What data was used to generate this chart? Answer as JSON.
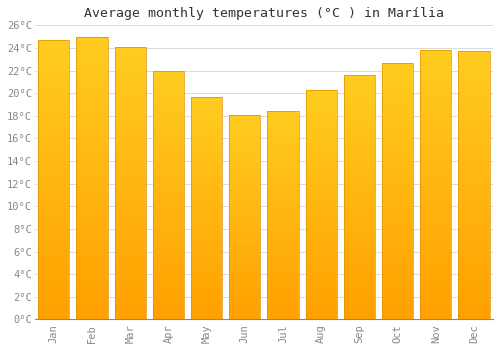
{
  "title": "Average monthly temperatures (°C ) in Marília",
  "months": [
    "Jan",
    "Feb",
    "Mar",
    "Apr",
    "May",
    "Jun",
    "Jul",
    "Aug",
    "Sep",
    "Oct",
    "Nov",
    "Dec"
  ],
  "values": [
    24.7,
    25.0,
    24.1,
    22.0,
    19.7,
    18.1,
    18.4,
    20.3,
    21.6,
    22.7,
    23.8,
    23.7
  ],
  "bar_color_top": "#FFC020",
  "bar_color_bottom": "#FFA000",
  "bar_edge_color": "#E09000",
  "background_color": "#FFFFFF",
  "grid_color": "#CCCCCC",
  "ytick_step": 2,
  "ymin": 0,
  "ymax": 26,
  "title_fontsize": 9.5,
  "tick_fontsize": 7.5,
  "font_family": "monospace"
}
